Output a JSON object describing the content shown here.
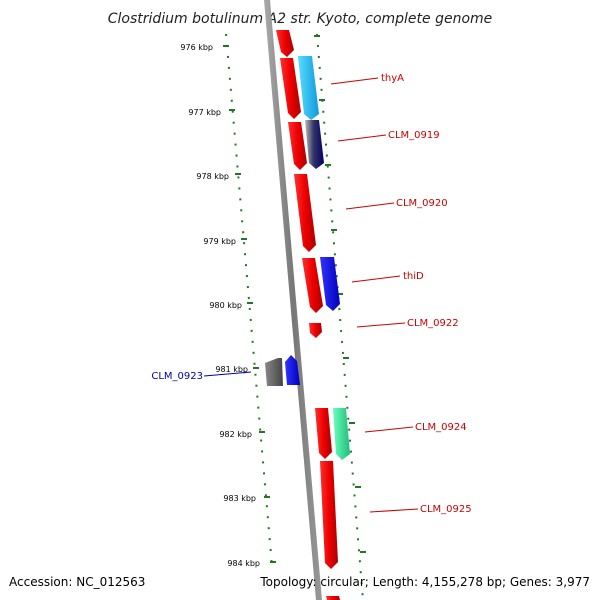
{
  "title": "Clostridium botulinum A2 str. Kyoto, complete genome",
  "footer": {
    "accession": "Accession: NC_012563",
    "summary": "Topology: circular; Length: 4,155,278 bp; Genes: 3,977"
  },
  "ticks": [
    "976 kbp",
    "977 kbp",
    "978 kbp",
    "979 kbp",
    "980 kbp",
    "981 kbp",
    "982 kbp",
    "983 kbp",
    "984 kbp"
  ],
  "genes": [
    {
      "name": "thyA",
      "strand": "plus"
    },
    {
      "name": "CLM_0919",
      "strand": "plus"
    },
    {
      "name": "CLM_0920",
      "strand": "plus"
    },
    {
      "name": "thiD",
      "strand": "plus"
    },
    {
      "name": "CLM_0922",
      "strand": "plus"
    },
    {
      "name": "CLM_0923",
      "strand": "minus"
    },
    {
      "name": "CLM_0924",
      "strand": "plus"
    },
    {
      "name": "CLM_0925",
      "strand": "plus"
    }
  ],
  "colors": {
    "backbone": "#888888",
    "cds": "#ee0000",
    "tick": "#227722",
    "label_plus": "#cc0000",
    "label_minus": "#0000aa",
    "cyan": "#22bbee",
    "navy": "#000088",
    "blue": "#0000ee",
    "grey": "#666666",
    "mint": "#33dd99"
  }
}
